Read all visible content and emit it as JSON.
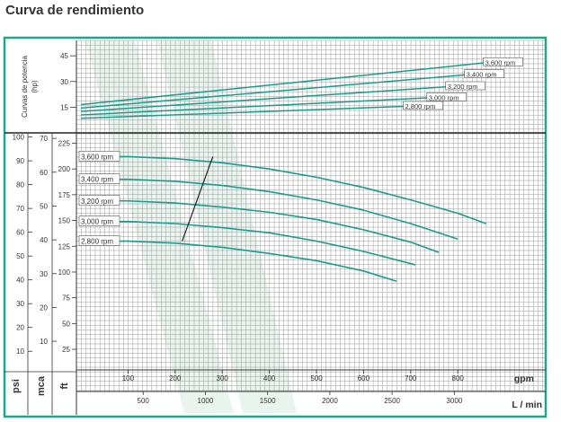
{
  "chart_data": {
    "type": "line",
    "title": "Curva de rendimiento",
    "power_chart": {
      "ylabel": "Curvas de potencia (hp)",
      "yticks": [
        15,
        30,
        45
      ],
      "ylim": [
        0,
        54
      ],
      "series": [
        {
          "name": "2,800 rpm",
          "x": [
            0,
            690
          ],
          "y": [
            8.5,
            15.5
          ]
        },
        {
          "name": "3,000 rpm",
          "x": [
            0,
            740
          ],
          "y": [
            10.5,
            20.5
          ]
        },
        {
          "name": "3,200 rpm",
          "x": [
            0,
            780
          ],
          "y": [
            12.5,
            27.0
          ]
        },
        {
          "name": "3,400 rpm",
          "x": [
            0,
            820
          ],
          "y": [
            14.5,
            34.0
          ]
        },
        {
          "name": "3,600 rpm",
          "x": [
            0,
            860
          ],
          "y": [
            16.5,
            41.0
          ]
        }
      ]
    },
    "head_chart": {
      "xlabel": "gpm",
      "xlabel2": "L / min",
      "ylabel_psi": "psi",
      "ylabel_mca": "mca",
      "ylabel_ft": "ft",
      "xlim": [
        0,
        1000
      ],
      "ylim_ft": [
        5,
        235
      ],
      "x_ticks_gpm": [
        100,
        200,
        300,
        400,
        500,
        600,
        700,
        800
      ],
      "x_ticks_lmin": [
        500,
        1000,
        1500,
        2000,
        2500,
        3000
      ],
      "ticks_ft": [
        25,
        50,
        75,
        100,
        125,
        150,
        175,
        200,
        225
      ],
      "ticks_mca": [
        10,
        20,
        30,
        40,
        50,
        60,
        70
      ],
      "ticks_psi": [
        10,
        20,
        30,
        40,
        50,
        60,
        70,
        80,
        90,
        100
      ],
      "series": [
        {
          "name": "3,600 rpm",
          "x": [
            0,
            100,
            200,
            300,
            400,
            500,
            600,
            700,
            800,
            860
          ],
          "y": [
            212,
            212,
            210,
            206,
            200,
            192,
            182,
            170,
            157,
            147
          ]
        },
        {
          "name": "3,400 rpm",
          "x": [
            0,
            100,
            200,
            300,
            400,
            500,
            600,
            700,
            800
          ],
          "y": [
            190,
            190,
            188,
            184,
            178,
            170,
            160,
            147,
            132
          ]
        },
        {
          "name": "3,200 rpm",
          "x": [
            0,
            100,
            200,
            300,
            400,
            500,
            600,
            700,
            760
          ],
          "y": [
            169,
            169,
            167,
            163,
            158,
            151,
            141,
            129,
            119
          ]
        },
        {
          "name": "3,000 rpm",
          "x": [
            0,
            100,
            200,
            300,
            400,
            500,
            600,
            710
          ],
          "y": [
            149,
            149,
            147,
            143,
            138,
            130,
            120,
            107
          ]
        },
        {
          "name": "2,800 rpm",
          "x": [
            0,
            100,
            200,
            300,
            400,
            500,
            600,
            670
          ],
          "y": [
            130,
            130,
            128,
            124,
            118,
            111,
            101,
            91
          ]
        }
      ],
      "best_efficiency_line": {
        "x": [
          215,
          280
        ],
        "y": [
          130,
          212
        ]
      }
    }
  },
  "colors": {
    "frame": "#1aa88a",
    "curve": "#1a9c8c",
    "grid": "#9a9a9a",
    "stripe": "#eaf4ef"
  }
}
